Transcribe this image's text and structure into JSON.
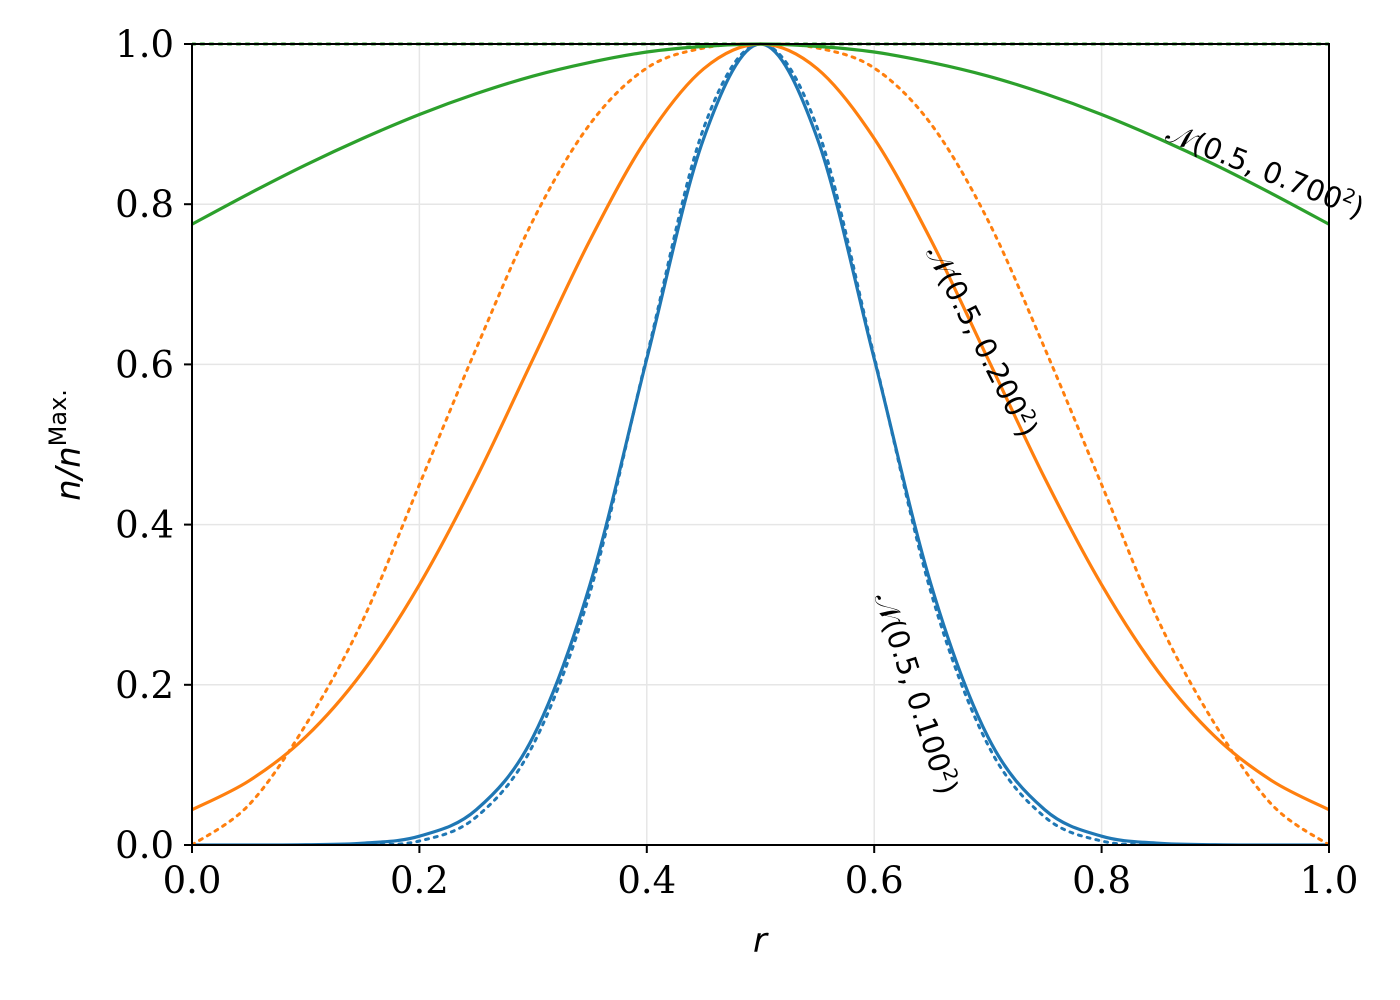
{
  "chart_data": {
    "type": "line",
    "xlabel": "r",
    "ylabel": "n/n",
    "ylabel_superscript": "Max.",
    "xlim": [
      0.0,
      1.0
    ],
    "ylim": [
      0.0,
      1.0
    ],
    "grid": true,
    "legend": "none",
    "xticks": [
      "0.0",
      "0.2",
      "0.4",
      "0.6",
      "0.8",
      "1.0"
    ],
    "yticks": [
      "0.0",
      "0.2",
      "0.4",
      "0.6",
      "0.8",
      "1.0"
    ],
    "x": [
      0.0,
      0.05,
      0.1,
      0.15,
      0.2,
      0.25,
      0.3,
      0.35,
      0.4,
      0.45,
      0.5,
      0.55,
      0.6,
      0.65,
      0.7,
      0.75,
      0.8,
      0.85,
      0.9,
      0.95,
      1.0
    ],
    "series": [
      {
        "color": "#1f77b4",
        "style": "solid",
        "values": [
          0.0,
          0.0,
          0.0003,
          0.0022,
          0.011,
          0.044,
          0.135,
          0.325,
          0.607,
          0.882,
          1.0,
          0.882,
          0.607,
          0.325,
          0.135,
          0.044,
          0.011,
          0.0022,
          0.0003,
          0.0,
          0.0
        ]
      },
      {
        "color": "#1f77b4",
        "style": "dotted",
        "values": [
          0.0,
          0.0,
          0.0,
          0.0,
          0.005,
          0.035,
          0.125,
          0.315,
          0.61,
          0.895,
          1.0,
          0.895,
          0.61,
          0.315,
          0.125,
          0.035,
          0.005,
          0.0,
          0.0,
          0.0,
          0.0
        ]
      },
      {
        "color": "#ff7f0e",
        "style": "solid",
        "values": [
          0.044,
          0.08,
          0.135,
          0.216,
          0.325,
          0.458,
          0.607,
          0.755,
          0.882,
          0.969,
          1.0,
          0.969,
          0.882,
          0.755,
          0.607,
          0.458,
          0.325,
          0.216,
          0.135,
          0.08,
          0.044
        ]
      },
      {
        "color": "#ff7f0e",
        "style": "dotted",
        "values": [
          0.0,
          0.05,
          0.15,
          0.28,
          0.45,
          0.62,
          0.78,
          0.9,
          0.97,
          0.995,
          1.0,
          0.995,
          0.97,
          0.9,
          0.78,
          0.62,
          0.45,
          0.28,
          0.15,
          0.05,
          0.0
        ]
      },
      {
        "color": "#2ca02c",
        "style": "solid",
        "values": [
          0.775,
          0.813,
          0.849,
          0.882,
          0.912,
          0.938,
          0.96,
          0.977,
          0.99,
          0.997,
          1.0,
          0.997,
          0.99,
          0.977,
          0.96,
          0.938,
          0.912,
          0.882,
          0.849,
          0.813,
          0.775
        ]
      },
      {
        "color": "#2ca02c",
        "style": "dotted",
        "values": [
          1.0,
          1.0,
          1.0,
          1.0,
          1.0,
          1.0,
          1.0,
          1.0,
          1.0,
          1.0,
          1.0,
          1.0,
          1.0,
          1.0,
          1.0,
          1.0,
          1.0,
          1.0,
          1.0,
          1.0,
          1.0
        ]
      }
    ],
    "annotations": [
      {
        "text": "𝒩(0.5, 0.700",
        "sup": "2",
        "close": ")",
        "x": 0.855,
        "y": 0.88,
        "angle": 22
      },
      {
        "text": "𝒩(0.5, 0.200",
        "sup": "2",
        "close": ")",
        "x": 0.645,
        "y": 0.74,
        "angle": 63
      },
      {
        "text": "𝒩(0.5, 0.100",
        "sup": "2",
        "close": ")",
        "x": 0.6,
        "y": 0.31,
        "angle": 72
      }
    ]
  }
}
